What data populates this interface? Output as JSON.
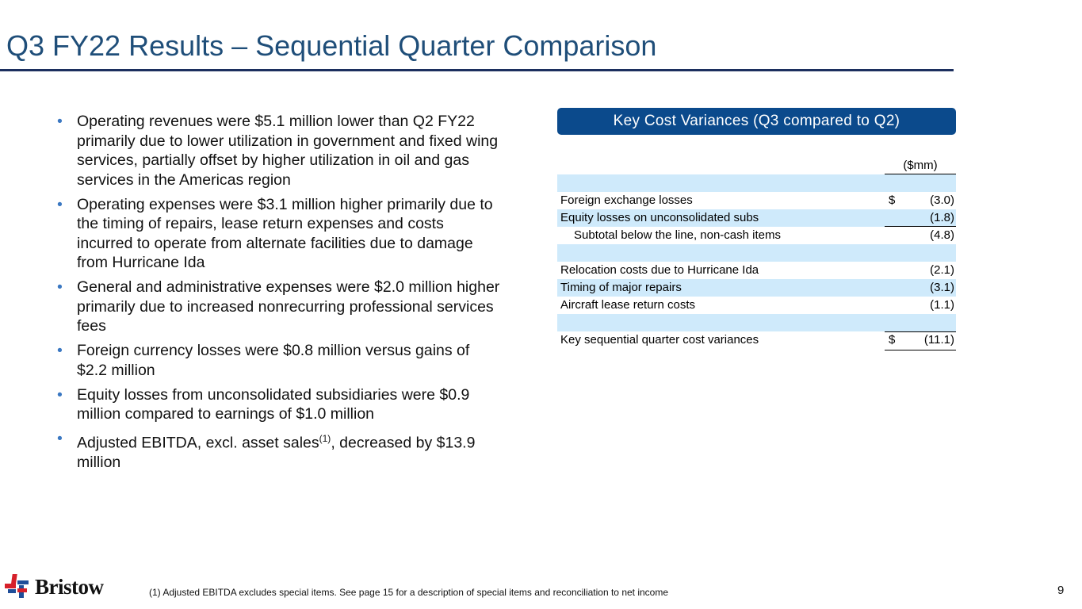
{
  "title": "Q3 FY22 Results – Sequential Quarter Comparison",
  "bullets": [
    "Operating revenues were $5.1 million lower than Q2 FY22 primarily due to lower utilization in government and fixed wing services, partially offset by higher utilization in oil and gas services in the Americas region",
    "Operating expenses were $3.1 million higher primarily due to the timing of repairs, lease return expenses and costs incurred to operate from alternate facilities due to damage from Hurricane Ida",
    "General and administrative expenses were $2.0 million higher primarily due to increased nonrecurring professional services fees",
    "Foreign currency losses were $0.8 million versus gains of $2.2 million",
    "Equity losses from unconsolidated subsidiaries were $0.9 million compared to earnings of $1.0 million"
  ],
  "last_bullet": {
    "pre": "Adjusted EBITDA, excl. asset sales",
    "sup": "(1)",
    "post": ", decreased by $13.9 million"
  },
  "table": {
    "header": "Key Cost Variances (Q3 compared to Q2)",
    "unit": "($mm)",
    "rows": [
      {
        "label": "Foreign exchange losses",
        "dollar": "$",
        "value": "(3.0)"
      },
      {
        "label": "Equity losses on unconsolidated subs",
        "dollar": "",
        "value": "(1.8)"
      },
      {
        "label": "Subtotal below the line, non-cash items",
        "dollar": "",
        "value": "(4.8)"
      },
      {
        "label": "Relocation costs due to Hurricane Ida",
        "dollar": "",
        "value": "(2.1)"
      },
      {
        "label": "Timing of major repairs",
        "dollar": "",
        "value": "(3.1)"
      },
      {
        "label": "Aircraft lease return costs",
        "dollar": "",
        "value": "(1.1)"
      },
      {
        "label": "Key sequential quarter cost variances",
        "dollar": "$",
        "value": "(11.1)"
      }
    ]
  },
  "logo": "Bristow",
  "footnote": "(1)  Adjusted EBITDA excludes special items. See page 15 for a description of special items and reconciliation to net income",
  "page_number": "9"
}
